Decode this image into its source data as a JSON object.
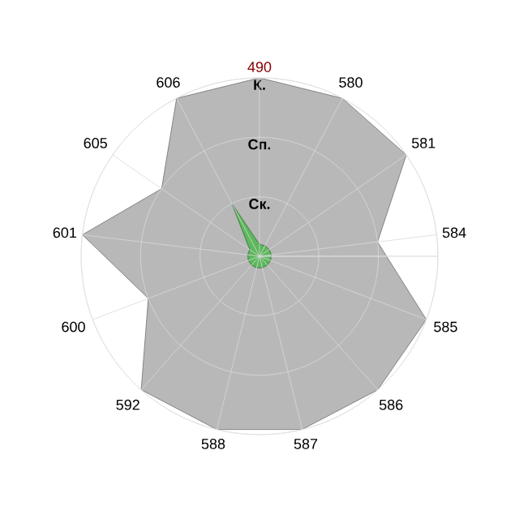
{
  "chart_data": {
    "type": "radar",
    "categories": [
      "490",
      "580",
      "581",
      "584",
      "585",
      "586",
      "587",
      "588",
      "592",
      "600",
      "601",
      "605",
      "606"
    ],
    "series": [
      {
        "color": "#b8b8b8",
        "values": [
          3,
          3,
          3,
          2,
          3,
          3,
          3,
          3,
          3,
          2,
          3,
          2,
          3
        ]
      },
      {
        "color": "#5cb85c",
        "values": [
          0.2,
          0.2,
          0.2,
          0.2,
          0.2,
          0.2,
          0.2,
          0.2,
          0.2,
          0.2,
          0.2,
          0.2,
          1
        ]
      }
    ],
    "ylim": [
      0,
      3
    ],
    "yticks": [
      {
        "value": 1,
        "label": "Ск."
      },
      {
        "value": 2,
        "label": "Сп."
      },
      {
        "value": 3,
        "label": "К."
      }
    ],
    "grid": true
  }
}
